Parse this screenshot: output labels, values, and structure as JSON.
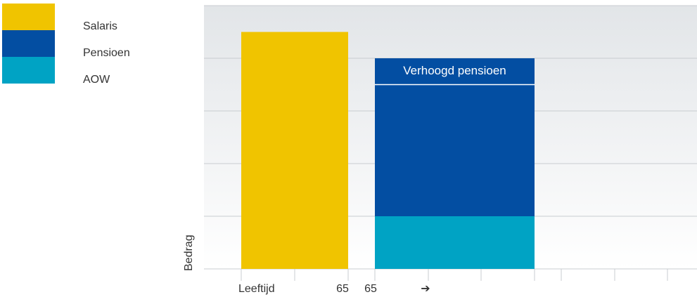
{
  "chart_data": {
    "type": "stacked_bar",
    "categories": [
      null,
      null
    ],
    "x_labels": [
      "Leeftijd",
      "65",
      "65",
      "➔"
    ],
    "y_label": "Bedrag",
    "series": [
      {
        "name": "AOW",
        "color": "#00a3c4",
        "values": [
          null,
          1.0
        ],
        "legend": true
      },
      {
        "name": "Pensioen",
        "color": "#034ea2",
        "values": [
          null,
          2.5
        ],
        "legend": true
      },
      {
        "name": "Verhoogd pensioen",
        "color": "#034ea2",
        "values": [
          null,
          0.5
        ],
        "legend": false
      },
      {
        "name": "Salaris",
        "color": "#f0c400",
        "values": [
          4.5,
          null
        ],
        "legend": true
      }
    ],
    "ylim": [
      0,
      5
    ],
    "yticks": [
      0,
      1,
      2,
      3,
      4,
      5
    ],
    "grid": true
  }
}
